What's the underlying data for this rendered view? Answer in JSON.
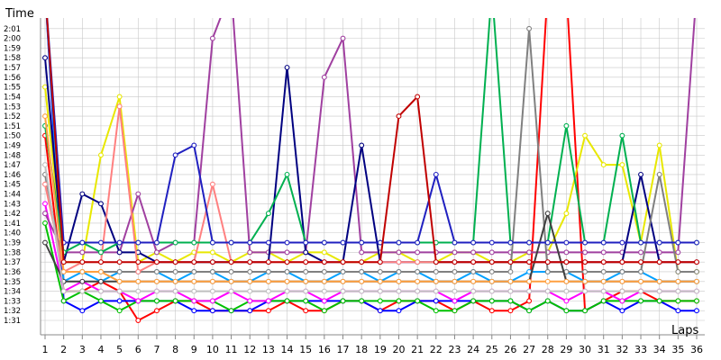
{
  "chart_data": {
    "type": "line",
    "ylabel": "Time",
    "xlabel": "Laps",
    "x": [
      1,
      2,
      3,
      4,
      5,
      6,
      7,
      8,
      9,
      10,
      11,
      12,
      13,
      14,
      15,
      16,
      17,
      18,
      19,
      20,
      21,
      22,
      23,
      24,
      25,
      26,
      27,
      28,
      29,
      30,
      31,
      32,
      33,
      34,
      35,
      36
    ],
    "xlim": [
      1,
      36
    ],
    "ylim": [
      91,
      122
    ],
    "y_ticks": [
      {
        "value": 92,
        "label": "1:32"
      },
      {
        "value": 93,
        "label": "1:33"
      },
      {
        "value": 94,
        "label": "1:34"
      },
      {
        "value": 95,
        "label": "1:35"
      },
      {
        "value": 96,
        "label": "1:36"
      },
      {
        "value": 97,
        "label": "1:37"
      },
      {
        "value": 98,
        "label": "1:38"
      },
      {
        "value": 99,
        "label": "1:39"
      },
      {
        "value": 100,
        "label": "1:40"
      },
      {
        "value": 101,
        "label": "1:41"
      },
      {
        "value": 102,
        "label": "1:42"
      },
      {
        "value": 103,
        "label": "1:43"
      },
      {
        "value": 104,
        "label": "1:44"
      },
      {
        "value": 105,
        "label": "1:45"
      },
      {
        "value": 106,
        "label": "1:46"
      },
      {
        "value": 107,
        "label": "1:47"
      },
      {
        "value": 108,
        "label": "1:48"
      },
      {
        "value": 109,
        "label": "1:49"
      },
      {
        "value": 110,
        "label": "1:50"
      },
      {
        "value": 111,
        "label": "1:51"
      },
      {
        "value": 112,
        "label": "1:52"
      },
      {
        "value": 113,
        "label": "1:53"
      },
      {
        "value": 114,
        "label": "1:54"
      },
      {
        "value": 115,
        "label": "1:55"
      },
      {
        "value": 116,
        "label": "1:56"
      },
      {
        "value": 117,
        "label": "1:57"
      },
      {
        "value": 118,
        "label": "1:58"
      },
      {
        "value": 119,
        "label": "1:59"
      },
      {
        "value": 120,
        "label": "2:00"
      },
      {
        "value": 121,
        "label": "2:01"
      }
    ],
    "y_tick_extra": {
      "value": 91,
      "label": "1:31"
    },
    "x_tick_labels": [
      "1",
      "2",
      "3",
      "4",
      "5",
      "6",
      "7",
      "8",
      "9",
      "10",
      "11",
      "12",
      "13",
      "14",
      "15",
      "16",
      "17",
      "18",
      "19",
      "20",
      "21",
      "22",
      "23",
      "24",
      "25",
      "26",
      "27",
      "28",
      "29",
      "30",
      "31",
      "32",
      "33",
      "34",
      "35",
      "36"
    ],
    "grid": true,
    "legend": "none",
    "series": [
      {
        "color": "#ff0000",
        "values": [
          110,
          94,
          94,
          95,
          94,
          91,
          92,
          93,
          93,
          92,
          92,
          92,
          92,
          93,
          92,
          92,
          93,
          93,
          92,
          93,
          93,
          93,
          92,
          93,
          92,
          92,
          93,
          125,
          125,
          92,
          93,
          94,
          94,
          93,
          93,
          93
        ]
      },
      {
        "color": "#0000ff",
        "values": [
          125,
          93,
          92,
          93,
          93,
          93,
          93,
          93,
          92,
          92,
          92,
          92,
          93,
          93,
          93,
          93,
          93,
          93,
          92,
          92,
          93,
          93,
          93,
          93,
          93,
          93,
          92,
          93,
          92,
          92,
          93,
          92,
          93,
          93,
          92,
          92
        ]
      },
      {
        "color": "#00c000",
        "values": [
          101,
          93,
          94,
          93,
          92,
          93,
          93,
          93,
          93,
          93,
          92,
          93,
          93,
          93,
          93,
          92,
          93,
          93,
          93,
          93,
          93,
          92,
          92,
          93,
          93,
          93,
          92,
          93,
          92,
          92,
          93,
          93,
          93,
          93,
          93,
          93
        ]
      },
      {
        "color": "#ff00ff",
        "values": [
          103,
          94,
          95,
          94,
          94,
          93,
          94,
          94,
          93,
          93,
          94,
          93,
          93,
          94,
          94,
          93,
          94,
          94,
          94,
          94,
          94,
          94,
          93,
          94,
          94,
          94,
          94,
          94,
          93,
          94,
          94,
          93,
          94,
          94,
          94,
          94
        ]
      },
      {
        "color": "#00a0ff",
        "values": [
          125,
          95,
          96,
          95,
          96,
          96,
          96,
          95,
          96,
          96,
          95,
          95,
          96,
          96,
          95,
          95,
          96,
          96,
          95,
          96,
          96,
          95,
          95,
          96,
          95,
          95,
          96,
          96,
          96,
          95,
          95,
          96,
          96,
          95,
          95,
          95
        ]
      },
      {
        "color": "#e8e800",
        "values": [
          115,
          97,
          97,
          108,
          114,
          97,
          98,
          97,
          98,
          98,
          97,
          98,
          98,
          97,
          98,
          98,
          97,
          97,
          98,
          98,
          97,
          97,
          98,
          98,
          97,
          97,
          98,
          98,
          102,
          110,
          107,
          107,
          99,
          109,
          96,
          96
        ]
      },
      {
        "color": "#a040a0",
        "values": [
          102,
          98,
          98,
          98,
          98,
          104,
          98,
          99,
          99,
          120,
          125,
          98,
          98,
          98,
          98,
          116,
          120,
          98,
          98,
          98,
          98,
          98,
          98,
          98,
          98,
          98,
          98,
          98,
          98,
          98,
          98,
          98,
          98,
          98,
          98,
          125
        ]
      },
      {
        "color": "#000080",
        "values": [
          118,
          97,
          104,
          103,
          98,
          98,
          97,
          97,
          97,
          97,
          97,
          97,
          97,
          117,
          98,
          97,
          97,
          109,
          97,
          97,
          97,
          97,
          97,
          97,
          97,
          97,
          97,
          97,
          97,
          97,
          97,
          97,
          106,
          97,
          97,
          97
        ]
      },
      {
        "color": "#808080",
        "values": [
          106,
          96,
          96,
          96,
          96,
          96,
          96,
          96,
          96,
          96,
          96,
          96,
          96,
          96,
          96,
          96,
          96,
          96,
          96,
          96,
          96,
          96,
          96,
          96,
          96,
          96,
          121,
          96,
          96,
          96,
          96,
          96,
          96,
          106,
          96,
          96
        ]
      },
      {
        "color": "#ff8080",
        "values": [
          105,
          96,
          97,
          97,
          113,
          96,
          97,
          97,
          97,
          105,
          97,
          97,
          97,
          97,
          97,
          97,
          97,
          97,
          97,
          97,
          97,
          97,
          97,
          97,
          97,
          97,
          97,
          97,
          97,
          97,
          97,
          97,
          97,
          97,
          97,
          97
        ]
      },
      {
        "color": "#00b050",
        "values": [
          111,
          98,
          99,
          98,
          99,
          99,
          99,
          99,
          99,
          99,
          99,
          99,
          102,
          106,
          99,
          99,
          99,
          99,
          99,
          99,
          99,
          99,
          99,
          99,
          125,
          99,
          99,
          99,
          111,
          99,
          99,
          110,
          99,
          99,
          99,
          99
        ]
      },
      {
        "color": "#404040",
        "values": [
          99,
          95,
          95,
          95,
          95,
          95,
          95,
          95,
          95,
          95,
          95,
          95,
          95,
          95,
          95,
          95,
          95,
          95,
          95,
          95,
          95,
          95,
          95,
          95,
          95,
          95,
          95,
          102,
          95,
          95,
          95,
          95,
          95,
          95,
          95,
          95
        ]
      },
      {
        "color": "#ffa040",
        "values": [
          112,
          96,
          96,
          96,
          95,
          95,
          95,
          95,
          95,
          95,
          95,
          95,
          95,
          95,
          95,
          95,
          95,
          95,
          95,
          95,
          95,
          95,
          95,
          95,
          95,
          95,
          95,
          95,
          95,
          95,
          95,
          95,
          95,
          95,
          95,
          95
        ]
      },
      {
        "color": "#c0c0c0",
        "values": [
          107,
          94,
          94,
          94,
          94,
          94,
          94,
          94,
          94,
          94,
          94,
          94,
          94,
          94,
          94,
          94,
          94,
          94,
          94,
          94,
          94,
          94,
          94,
          94,
          94,
          94,
          94,
          94,
          94,
          94,
          94,
          94,
          94,
          94,
          94,
          94
        ]
      },
      {
        "color": "#2020c0",
        "values": [
          125,
          99,
          99,
          99,
          99,
          99,
          99,
          108,
          109,
          99,
          99,
          99,
          99,
          99,
          99,
          99,
          99,
          99,
          99,
          99,
          99,
          106,
          99,
          99,
          99,
          99,
          99,
          99,
          99,
          99,
          99,
          99,
          99,
          99,
          99,
          99
        ]
      },
      {
        "color": "#c00000",
        "values": [
          125,
          97,
          97,
          97,
          97,
          97,
          97,
          97,
          97,
          97,
          97,
          97,
          97,
          97,
          97,
          97,
          97,
          97,
          97,
          112,
          114,
          97,
          97,
          97,
          97,
          97,
          97,
          97,
          97,
          97,
          97,
          97,
          97,
          97,
          97,
          97
        ]
      }
    ]
  }
}
